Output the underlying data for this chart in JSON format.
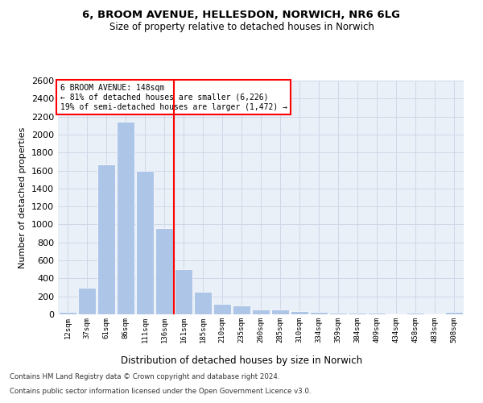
{
  "title_line1": "6, BROOM AVENUE, HELLESDON, NORWICH, NR6 6LG",
  "title_line2": "Size of property relative to detached houses in Norwich",
  "xlabel": "Distribution of detached houses by size in Norwich",
  "ylabel": "Number of detached properties",
  "bar_labels": [
    "12sqm",
    "37sqm",
    "61sqm",
    "86sqm",
    "111sqm",
    "136sqm",
    "161sqm",
    "185sqm",
    "210sqm",
    "235sqm",
    "260sqm",
    "285sqm",
    "310sqm",
    "334sqm",
    "359sqm",
    "384sqm",
    "409sqm",
    "434sqm",
    "458sqm",
    "483sqm",
    "508sqm"
  ],
  "bar_values": [
    25,
    300,
    1670,
    2140,
    1600,
    960,
    500,
    250,
    120,
    100,
    50,
    50,
    35,
    30,
    20,
    20,
    20,
    5,
    20,
    5,
    25
  ],
  "bar_color": "#adc6e8",
  "ylim": [
    0,
    2600
  ],
  "yticks": [
    0,
    200,
    400,
    600,
    800,
    1000,
    1200,
    1400,
    1600,
    1800,
    2000,
    2200,
    2400,
    2600
  ],
  "vline_x": 5.5,
  "annotation_text_line1": "6 BROOM AVENUE: 148sqm",
  "annotation_text_line2": "← 81% of detached houses are smaller (6,226)",
  "annotation_text_line3": "19% of semi-detached houses are larger (1,472) →",
  "grid_color": "#d0d8e8",
  "bg_color": "#eaf0f8",
  "footer_line1": "Contains HM Land Registry data © Crown copyright and database right 2024.",
  "footer_line2": "Contains public sector information licensed under the Open Government Licence v3.0."
}
